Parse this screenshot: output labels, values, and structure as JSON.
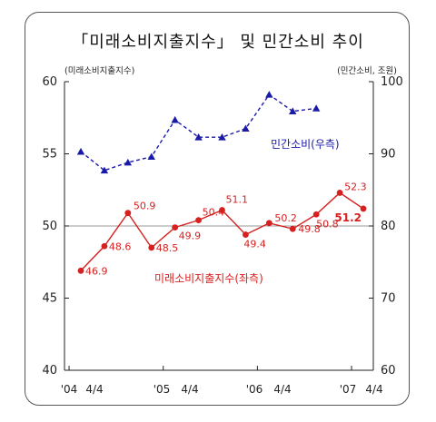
{
  "chart_data": {
    "type": "line",
    "title": "「미래소비지출지수」 및 민간소비 추이",
    "left_axis_unit": "(미래소비지출지수)",
    "right_axis_unit": "(민간소비, 조원)",
    "x_tick_labels": [
      "'04",
      "4/4",
      "'05",
      "4/4",
      "'06",
      "4/4",
      "'07",
      "4/4"
    ],
    "left_ylim": [
      40,
      60
    ],
    "left_yticks": [
      "60",
      "55",
      "50",
      "45",
      "40"
    ],
    "right_ylim": [
      60,
      100
    ],
    "right_yticks": [
      "100",
      "90",
      "80",
      "70",
      "60"
    ],
    "reference_line_left_value": 50,
    "grid": false,
    "series": [
      {
        "name": "미래소비지출지수(좌측)",
        "axis": "left",
        "color": "#d62020",
        "style": "solid",
        "marker": "circle",
        "values": [
          46.9,
          48.6,
          50.9,
          48.5,
          49.9,
          50.4,
          51.1,
          49.4,
          50.2,
          49.8,
          50.8,
          52.3,
          51.2
        ],
        "labels": [
          "46.9",
          "48.6",
          "50.9",
          "48.5",
          "49.9",
          "50.4",
          "51.1",
          "49.4",
          "50.2",
          "49.8",
          "50.8",
          "52.3",
          "51.2"
        ]
      },
      {
        "name": "민간소비(우측)",
        "axis": "right",
        "color": "#1a1aa8",
        "style": "dashed",
        "marker": "triangle",
        "values": [
          90.3,
          87.7,
          88.8,
          89.6,
          94.7,
          92.3,
          92.3,
          93.5,
          98.2,
          95.9,
          96.3
        ]
      }
    ]
  }
}
